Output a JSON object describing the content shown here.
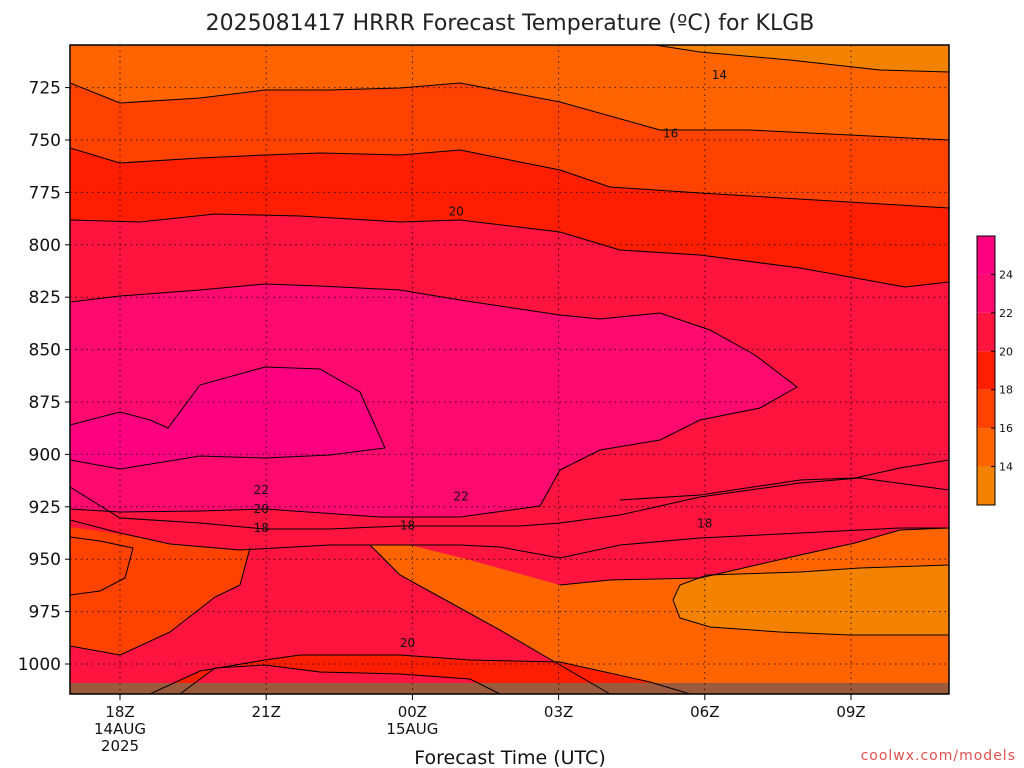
{
  "title": "2025081417 HRRR Forecast Temperature (ºC) for KLGB",
  "xlabel": "Forecast Time (UTC)",
  "credit": "coolwx.com/models",
  "chart_data": {
    "type": "filled-contour",
    "title": "2025081417 HRRR Forecast Temperature (ºC) for KLGB",
    "xlabel": "Forecast Time (UTC)",
    "ylabel": "",
    "y_scale": "pressure (hPa), inverted",
    "y_ticks": [
      725,
      750,
      775,
      800,
      825,
      850,
      875,
      900,
      925,
      950,
      975,
      1000
    ],
    "y_range": [
      1012,
      711
    ],
    "x_range_hours": [
      17,
      29
    ],
    "x_ticks": [
      {
        "hour": 18,
        "lines": [
          "18Z",
          "14AUG",
          "2025"
        ]
      },
      {
        "hour": 21,
        "lines": [
          "21Z"
        ]
      },
      {
        "hour": 24,
        "lines": [
          "00Z",
          "15AUG"
        ]
      },
      {
        "hour": 27,
        "lines": [
          "03Z"
        ]
      },
      {
        "hour": 30,
        "lines": [
          "06Z"
        ]
      },
      {
        "hour": 33,
        "lines": [
          "09Z"
        ]
      }
    ],
    "grid": true,
    "colorbar": {
      "placement": "right",
      "levels": [
        12,
        14,
        16,
        18,
        20,
        22,
        24,
        26
      ],
      "tick_labels": [
        "14",
        "16",
        "18",
        "20",
        "22",
        "24"
      ],
      "colors": [
        "#f28200",
        "#ff6400",
        "#ff4200",
        "#ff1e00",
        "#ff1440",
        "#ff0a6e",
        "#ff0080"
      ]
    },
    "contour_labels": [
      {
        "value": "14",
        "hour": 30.3,
        "pressure": 719
      },
      {
        "value": "16",
        "hour": 29.3,
        "pressure": 747
      },
      {
        "value": "20",
        "hour": 24.9,
        "pressure": 784
      },
      {
        "value": "22",
        "hour": 20.9,
        "pressure": 917
      },
      {
        "value": "22",
        "hour": 25.0,
        "pressure": 920
      },
      {
        "value": "20",
        "hour": 20.9,
        "pressure": 926
      },
      {
        "value": "20",
        "hour": 23.9,
        "pressure": 990
      },
      {
        "value": "18",
        "hour": 20.9,
        "pressure": 935
      },
      {
        "value": "18",
        "hour": 23.9,
        "pressure": 934
      },
      {
        "value": "18",
        "hour": 30.0,
        "pressure": 933
      }
    ],
    "terrain_below_hpa": 1008
  }
}
